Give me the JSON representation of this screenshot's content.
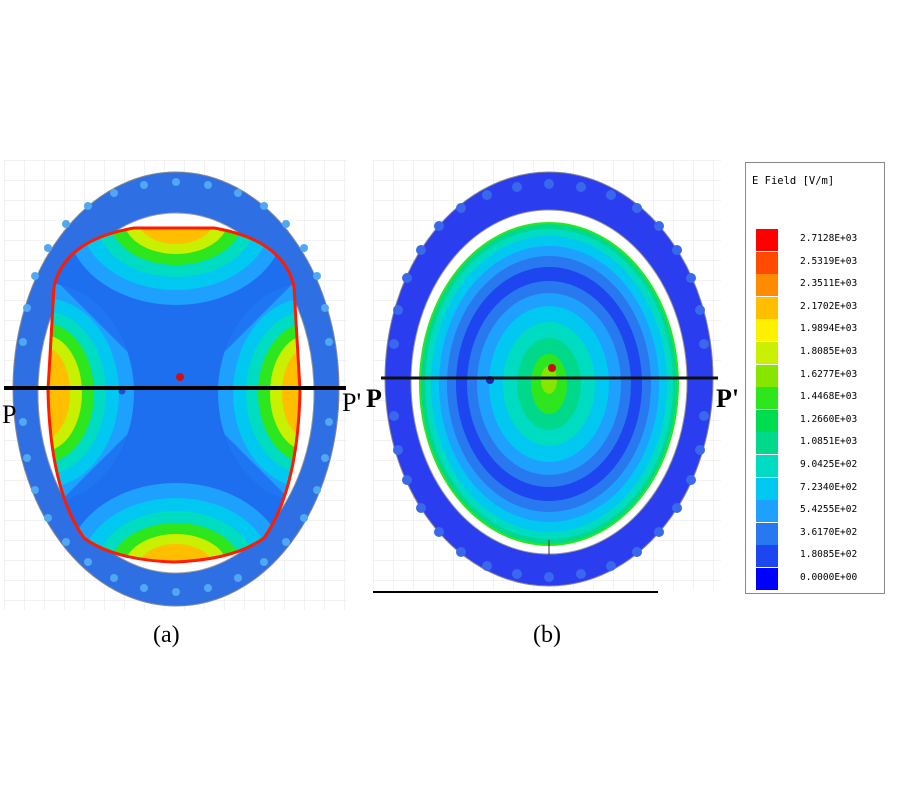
{
  "figure": {
    "captions": {
      "a": "(a)",
      "b": "(b)"
    },
    "line_label_start": "P",
    "line_label_end": "P'"
  },
  "legend": {
    "title": "E Field [V/m]",
    "entries": [
      {
        "label": "2.7128E+03",
        "color": "#ff0000"
      },
      {
        "label": "2.5319E+03",
        "color": "#ff4a00"
      },
      {
        "label": "2.3511E+03",
        "color": "#ff8c00"
      },
      {
        "label": "2.1702E+03",
        "color": "#ffbe00"
      },
      {
        "label": "1.9894E+03",
        "color": "#fff000"
      },
      {
        "label": "1.8085E+03",
        "color": "#c8f000"
      },
      {
        "label": "1.6277E+03",
        "color": "#86e600"
      },
      {
        "label": "1.4468E+03",
        "color": "#2ee61e"
      },
      {
        "label": "1.2660E+03",
        "color": "#00dc50"
      },
      {
        "label": "1.0851E+03",
        "color": "#00d98c"
      },
      {
        "label": "9.0425E+02",
        "color": "#00dcc2"
      },
      {
        "label": "7.2340E+02",
        "color": "#00c8f0"
      },
      {
        "label": "5.4255E+02",
        "color": "#1ea0ff"
      },
      {
        "label": "3.6170E+02",
        "color": "#2878f0"
      },
      {
        "label": "1.8085E+02",
        "color": "#1e46f0"
      },
      {
        "label": "0.0000E+00",
        "color": "#0000ff"
      }
    ]
  }
}
